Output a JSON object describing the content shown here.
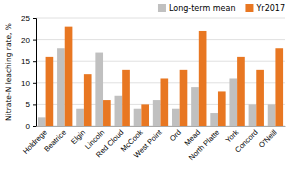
{
  "chart_data": {
    "type": "bar",
    "categories": [
      "Holdrege",
      "Beatrice",
      "Elgin",
      "Lincoln",
      "Red Cloud",
      "McCook",
      "West Point",
      "Ord",
      "Mead",
      "North Platte",
      "York",
      "Concord",
      "O'Neill"
    ],
    "series": [
      {
        "name": "Long-term mean",
        "color": "#c0c0c0",
        "values": [
          2,
          18,
          4,
          17,
          7,
          4,
          6,
          4,
          9,
          3,
          11,
          5,
          5
        ]
      },
      {
        "name": "Yr2017",
        "color": "#e87722",
        "values": [
          16,
          23,
          12,
          6,
          13,
          5,
          11,
          13,
          22,
          8,
          16,
          13,
          18
        ]
      }
    ],
    "ylabel": "Nitrate-N leaching rate, %",
    "ylim": [
      0,
      25
    ],
    "yticks": [
      0,
      5,
      10,
      15,
      20,
      25
    ],
    "grid": true,
    "legend": "upper right"
  }
}
